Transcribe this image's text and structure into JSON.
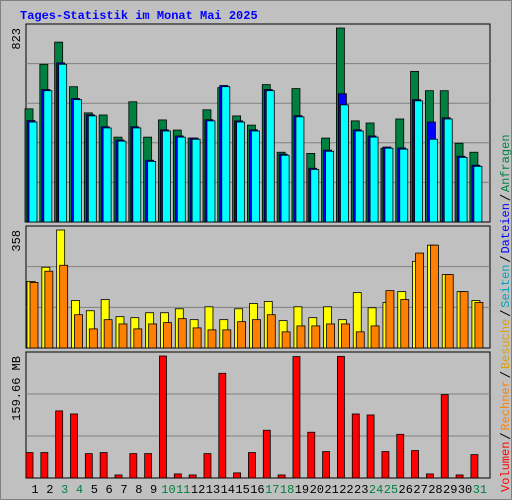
{
  "title": "Tages-Statistik im Monat Mai 2025",
  "x_axis": {
    "categories": [
      "1",
      "2",
      "3",
      "4",
      "5",
      "6",
      "7",
      "8",
      "9",
      "10",
      "11",
      "12",
      "13",
      "14",
      "15",
      "16",
      "17",
      "18",
      "19",
      "20",
      "21",
      "22",
      "23",
      "24",
      "25",
      "26",
      "27",
      "28",
      "29",
      "30",
      "31"
    ],
    "category_colors": [
      "#000000",
      "#000000",
      "#008040",
      "#008040",
      "#000000",
      "#000000",
      "#000000",
      "#000000",
      "#000000",
      "#008040",
      "#008040",
      "#000000",
      "#000000",
      "#000000",
      "#000000",
      "#000000",
      "#008040",
      "#008040",
      "#000000",
      "#000000",
      "#000000",
      "#000000",
      "#000000",
      "#008040",
      "#008040",
      "#000000",
      "#000000",
      "#000000",
      "#000000",
      "#000000",
      "#008040"
    ]
  },
  "chart_data": [
    {
      "type": "bar",
      "ylim": [
        0,
        823
      ],
      "yticks": [
        823
      ],
      "grid": true,
      "series": [
        {
          "name": "Anfragen",
          "color": "#008040",
          "label_color": "#008040",
          "values": [
            480,
            669,
            763,
            574,
            463,
            454,
            360,
            510,
            360,
            433,
            390,
            356,
            476,
            570,
            450,
            411,
            583,
            296,
            566,
            291,
            356,
            823,
            429,
            420,
            313,
            437,
            639,
            557,
            557,
            334,
            296
          ]
        },
        {
          "name": "Dateien",
          "color": "#0000ff",
          "label_color": "#0000ff",
          "values": [
            430,
            562,
            675,
            524,
            455,
            404,
            348,
            404,
            262,
            391,
            365,
            356,
            434,
            579,
            429,
            391,
            562,
            288,
            451,
            228,
            305,
            544,
            391,
            365,
            318,
            314,
            519,
            424,
            442,
            279,
            241
          ]
        },
        {
          "name": "Seiten",
          "color": "#00ffff",
          "label_color": "#00a0c0",
          "values": [
            424,
            557,
            669,
            519,
            450,
            399,
            343,
            399,
            257,
            386,
            360,
            351,
            429,
            574,
            424,
            386,
            557,
            283,
            446,
            223,
            300,
            497,
            386,
            360,
            313,
            309,
            514,
            351,
            437,
            274,
            236
          ]
        }
      ]
    },
    {
      "type": "bar",
      "ylim": [
        0,
        358
      ],
      "yticks": [
        358
      ],
      "grid": true,
      "series": [
        {
          "name": "Besuche",
          "color": "#ffff00",
          "label_color": "#e0a000",
          "values": [
            202,
            245,
            358,
            144,
            113,
            147,
            95,
            92,
            107,
            107,
            119,
            86,
            125,
            86,
            119,
            135,
            141,
            83,
            125,
            92,
            125,
            86,
            168,
            122,
            138,
            171,
            263,
            312,
            223,
            171,
            144
          ]
        },
        {
          "name": "Rechner",
          "color": "#ff8000",
          "label_color": "#ff8000",
          "values": [
            199,
            233,
            251,
            101,
            58,
            86,
            73,
            58,
            73,
            77,
            89,
            61,
            55,
            55,
            80,
            86,
            101,
            49,
            67,
            67,
            73,
            73,
            49,
            67,
            174,
            147,
            288,
            312,
            223,
            171,
            138
          ]
        }
      ]
    },
    {
      "type": "bar",
      "ylim": [
        0,
        159.66
      ],
      "yticks": [
        {
          "value": 159.66,
          "label": "159.66 MB"
        }
      ],
      "grid": true,
      "series": [
        {
          "name": "Volumen",
          "color": "#ff0000",
          "label_color": "#ff0000",
          "values": [
            33.3,
            33.3,
            87.8,
            83.8,
            31.9,
            33.3,
            4.0,
            31.9,
            31.9,
            159.66,
            5.3,
            4.0,
            31.9,
            137.0,
            6.7,
            33.3,
            62.5,
            4.0,
            158.9,
            59.9,
            34.6,
            159.2,
            83.8,
            82.5,
            34.6,
            57.2,
            35.9,
            5.3,
            109.1,
            4.0,
            30.6
          ]
        }
      ]
    }
  ]
}
